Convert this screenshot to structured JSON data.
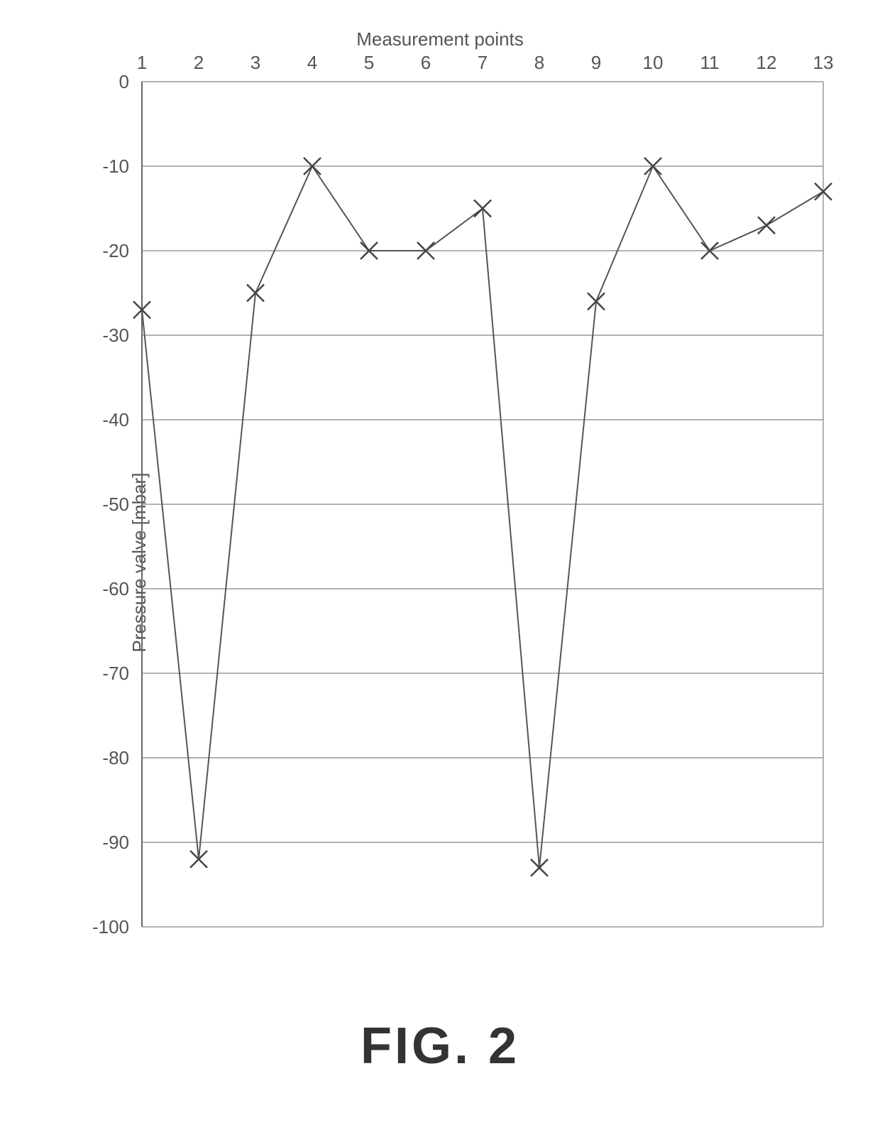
{
  "chart": {
    "type": "line",
    "x_axis_title": "Measurement points",
    "y_axis_title": "Pressure valve [mbar]",
    "x_values": [
      1,
      2,
      3,
      4,
      5,
      6,
      7,
      8,
      9,
      10,
      11,
      12,
      13
    ],
    "y_values": [
      -27,
      -92,
      -25,
      -10,
      -20,
      -20,
      -15,
      -93,
      -26,
      -10,
      -20,
      -17,
      -13
    ],
    "x_tick_labels": [
      "1",
      "2",
      "3",
      "4",
      "5",
      "6",
      "7",
      "8",
      "9",
      "10",
      "11",
      "12",
      "13"
    ],
    "y_tick_labels": [
      "0",
      "-10",
      "-20",
      "-30",
      "-40",
      "-50",
      "-60",
      "-70",
      "-80",
      "-90",
      "-100"
    ],
    "y_tick_values": [
      0,
      -10,
      -20,
      -30,
      -40,
      -50,
      -60,
      -70,
      -80,
      -90,
      -100
    ],
    "xlim": [
      1,
      13
    ],
    "ylim": [
      -100,
      0
    ],
    "ytick_step": 10,
    "background_color": "#ffffff",
    "grid_color": "#999999",
    "axis_color": "#666666",
    "line_color": "#555555",
    "marker_color": "#444444",
    "text_color": "#555555",
    "marker_style": "x",
    "marker_size": 12,
    "line_width": 2,
    "label_fontsize": 26,
    "tick_fontsize": 26
  },
  "figure_label": "FIG. 2"
}
